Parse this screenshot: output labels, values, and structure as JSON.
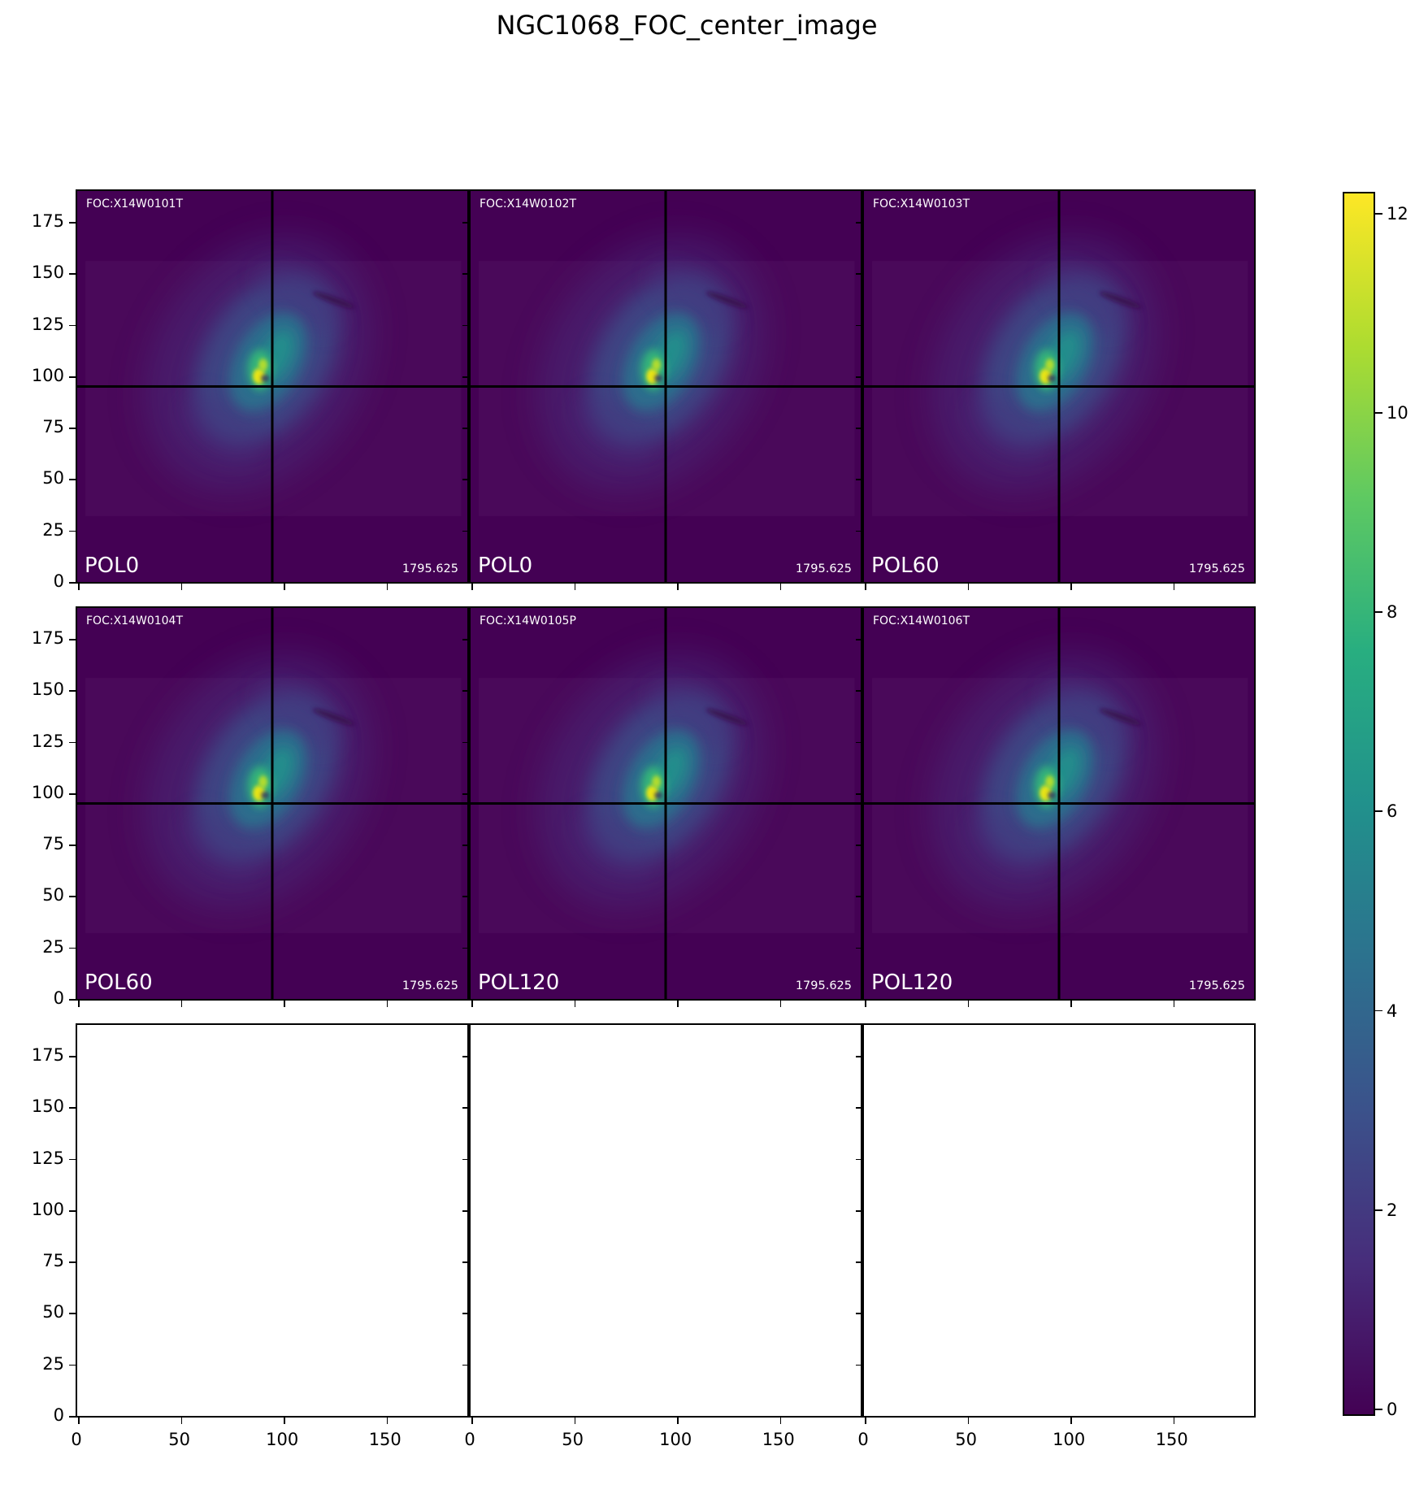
{
  "title": "NGC1068_FOC_center_image",
  "panels": [
    {
      "row": 0,
      "col": 0,
      "has_image": true,
      "foc_label": "FOC:X14W0101T",
      "pol_label": "POL0",
      "exposure_label": "1795.625"
    },
    {
      "row": 0,
      "col": 1,
      "has_image": true,
      "foc_label": "FOC:X14W0102T",
      "pol_label": "POL0",
      "exposure_label": "1795.625"
    },
    {
      "row": 0,
      "col": 2,
      "has_image": true,
      "foc_label": "FOC:X14W0103T",
      "pol_label": "POL60",
      "exposure_label": "1795.625"
    },
    {
      "row": 1,
      "col": 0,
      "has_image": true,
      "foc_label": "FOC:X14W0104T",
      "pol_label": "POL60",
      "exposure_label": "1795.625"
    },
    {
      "row": 1,
      "col": 1,
      "has_image": true,
      "foc_label": "FOC:X14W0105P",
      "pol_label": "POL120",
      "exposure_label": "1795.625"
    },
    {
      "row": 1,
      "col": 2,
      "has_image": true,
      "foc_label": "FOC:X14W0106T",
      "pol_label": "POL120",
      "exposure_label": "1795.625"
    },
    {
      "row": 2,
      "col": 0,
      "has_image": false
    },
    {
      "row": 2,
      "col": 1,
      "has_image": false
    },
    {
      "row": 2,
      "col": 2,
      "has_image": false
    }
  ],
  "axes": {
    "x_tick_values": [
      0,
      50,
      100,
      150
    ],
    "x_tick_labels": [
      "0",
      "50",
      "100",
      "150"
    ],
    "y_tick_values": [
      0,
      25,
      50,
      75,
      100,
      125,
      150,
      175
    ],
    "y_tick_labels": [
      "0",
      "25",
      "50",
      "75",
      "100",
      "125",
      "150",
      "175"
    ],
    "x_range": [
      0,
      190
    ],
    "y_range": [
      0,
      190
    ]
  },
  "colorbar": {
    "tick_values": [
      0,
      2,
      4,
      6,
      8,
      10,
      12
    ],
    "tick_labels": [
      "0",
      "2",
      "4",
      "6",
      "8",
      "10",
      "12"
    ],
    "vmin": 0,
    "vmax": 12.2,
    "colormap": "viridis"
  },
  "chart_data": {
    "type": "heatmap",
    "title": "NGC1068_FOC_center_image",
    "grid": {
      "rows": 3,
      "cols": 3,
      "image_panels": 6,
      "empty_panels": 3
    },
    "panels": [
      {
        "header": "FOC:X14W0101T",
        "polarizer": "POL0",
        "exposure": 1795.625
      },
      {
        "header": "FOC:X14W0102T",
        "polarizer": "POL0",
        "exposure": 1795.625
      },
      {
        "header": "FOC:X14W0103T",
        "polarizer": "POL60",
        "exposure": 1795.625
      },
      {
        "header": "FOC:X14W0104T",
        "polarizer": "POL60",
        "exposure": 1795.625
      },
      {
        "header": "FOC:X14W0105P",
        "polarizer": "POL120",
        "exposure": 1795.625
      },
      {
        "header": "FOC:X14W0106T",
        "polarizer": "POL120",
        "exposure": 1795.625
      }
    ],
    "xlabel": "",
    "ylabel": "",
    "xlim": [
      0,
      190
    ],
    "ylim": [
      0,
      190
    ],
    "x_ticks": [
      0,
      50,
      100,
      150
    ],
    "y_ticks": [
      0,
      25,
      50,
      75,
      100,
      125,
      150,
      175
    ],
    "colormap": "viridis",
    "color_range": [
      0,
      12.2
    ],
    "colorbar_ticks": [
      0,
      2,
      4,
      6,
      8,
      10,
      12
    ],
    "crosshair_data_coords": [
      95,
      95
    ],
    "galaxy_core_data_coords": [
      89,
      102
    ],
    "peak_value": 12.2,
    "legend_position": "right-colorbar",
    "grid_lines": "off"
  }
}
